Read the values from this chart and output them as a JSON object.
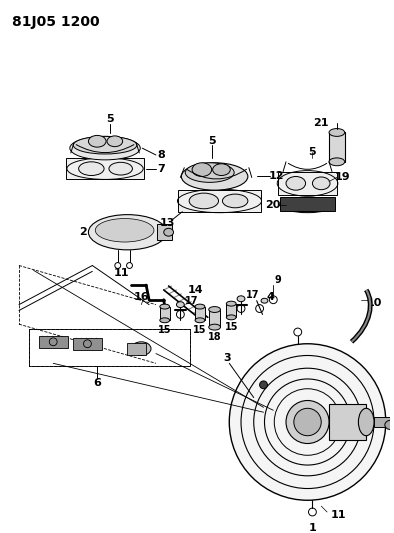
{
  "title": "81J05 1200",
  "bg_color": "#ffffff",
  "line_color": "#000000",
  "title_fontsize": 10,
  "label_fontsize": 7,
  "fig_width": 3.94,
  "fig_height": 5.33,
  "dpi": 100
}
